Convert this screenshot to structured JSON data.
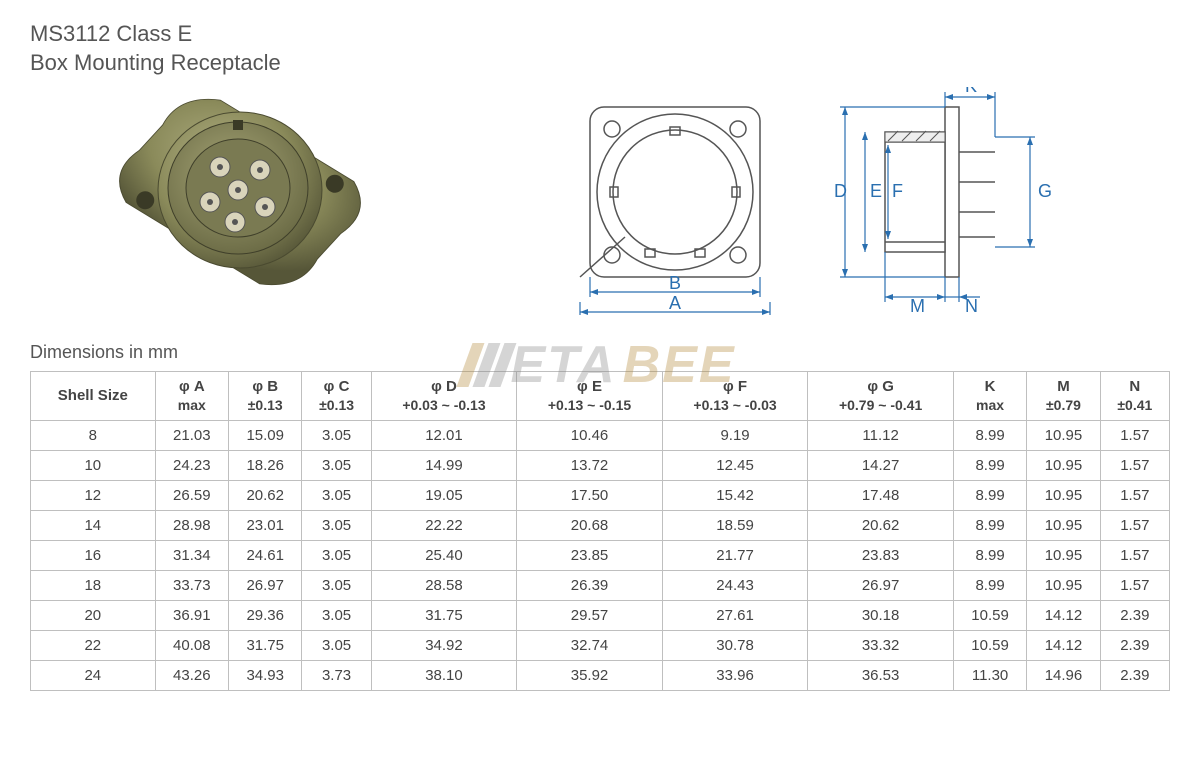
{
  "title": {
    "line1": "MS3112 Class E",
    "line2": "Box Mounting Receptacle"
  },
  "caption": "Dimensions in mm",
  "watermark": {
    "part1": "ETA",
    "part2": "BEE"
  },
  "diagram": {
    "labels": {
      "A": "A",
      "B": "B",
      "D": "D",
      "E": "E",
      "F": "F",
      "G": "G",
      "K": "K",
      "M": "M",
      "N": "N"
    },
    "colors": {
      "dim": "#2a6fb0",
      "line": "#555555"
    }
  },
  "photo": {
    "body_color": "#8a8a5a",
    "body_color_dark": "#5f5f3d",
    "pin_color": "#d9d4bb"
  },
  "table": {
    "columns": [
      {
        "h1": "Shell Size",
        "h2": ""
      },
      {
        "h1": "φ A",
        "h2": "max"
      },
      {
        "h1": "φ B",
        "h2": "±0.13"
      },
      {
        "h1": "φ C",
        "h2": "±0.13"
      },
      {
        "h1": "φ D",
        "h2": "+0.03 ~ -0.13"
      },
      {
        "h1": "φ E",
        "h2": "+0.13 ~ -0.15"
      },
      {
        "h1": "φ F",
        "h2": "+0.13 ~ -0.03"
      },
      {
        "h1": "φ G",
        "h2": "+0.79 ~ -0.41"
      },
      {
        "h1": "K",
        "h2": "max"
      },
      {
        "h1": "M",
        "h2": "±0.79"
      },
      {
        "h1": "N",
        "h2": "±0.41"
      }
    ],
    "rows": [
      [
        "8",
        "21.03",
        "15.09",
        "3.05",
        "12.01",
        "10.46",
        "9.19",
        "11.12",
        "8.99",
        "10.95",
        "1.57"
      ],
      [
        "10",
        "24.23",
        "18.26",
        "3.05",
        "14.99",
        "13.72",
        "12.45",
        "14.27",
        "8.99",
        "10.95",
        "1.57"
      ],
      [
        "12",
        "26.59",
        "20.62",
        "3.05",
        "19.05",
        "17.50",
        "15.42",
        "17.48",
        "8.99",
        "10.95",
        "1.57"
      ],
      [
        "14",
        "28.98",
        "23.01",
        "3.05",
        "22.22",
        "20.68",
        "18.59",
        "20.62",
        "8.99",
        "10.95",
        "1.57"
      ],
      [
        "16",
        "31.34",
        "24.61",
        "3.05",
        "25.40",
        "23.85",
        "21.77",
        "23.83",
        "8.99",
        "10.95",
        "1.57"
      ],
      [
        "18",
        "33.73",
        "26.97",
        "3.05",
        "28.58",
        "26.39",
        "24.43",
        "26.97",
        "8.99",
        "10.95",
        "1.57"
      ],
      [
        "20",
        "36.91",
        "29.36",
        "3.05",
        "31.75",
        "29.57",
        "27.61",
        "30.18",
        "10.59",
        "14.12",
        "2.39"
      ],
      [
        "22",
        "40.08",
        "31.75",
        "3.05",
        "34.92",
        "32.74",
        "30.78",
        "33.32",
        "10.59",
        "14.12",
        "2.39"
      ],
      [
        "24",
        "43.26",
        "34.93",
        "3.73",
        "38.10",
        "35.92",
        "33.96",
        "36.53",
        "11.30",
        "14.96",
        "2.39"
      ]
    ]
  }
}
